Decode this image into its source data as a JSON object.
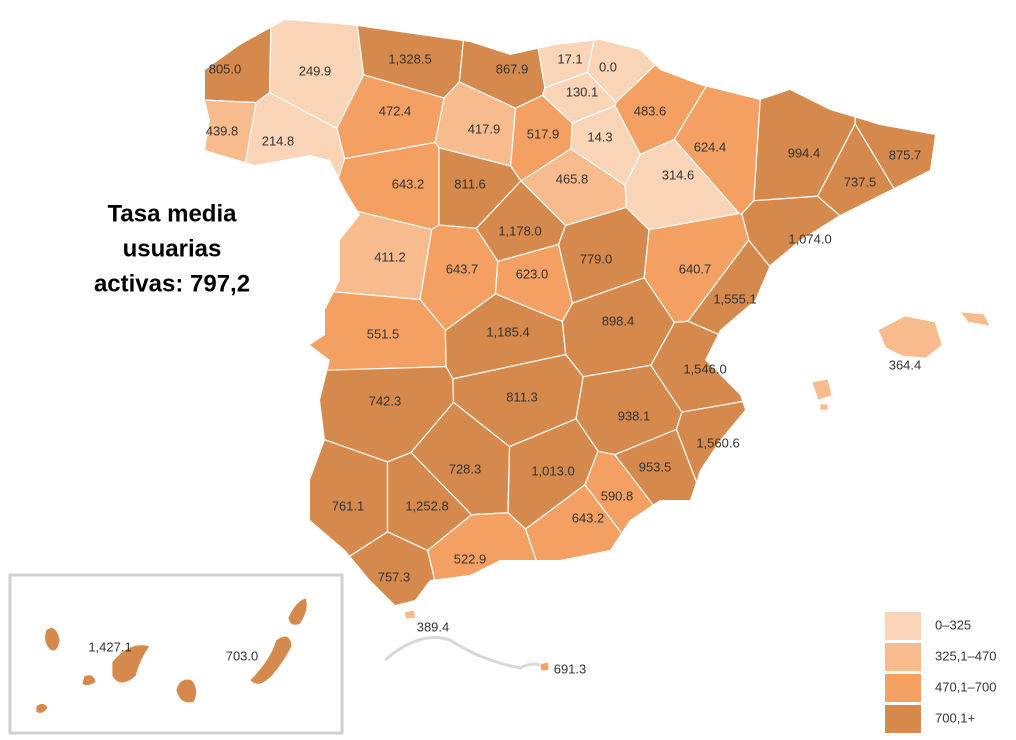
{
  "title_lines": [
    "Tasa media",
    "usuarias",
    "activas: 797,2"
  ],
  "regions": [
    {
      "label": "805.0",
      "class": 3
    },
    {
      "label": "249.9",
      "class": 0
    },
    {
      "label": "1,328.5",
      "class": 3
    },
    {
      "label": "867.9",
      "class": 3
    },
    {
      "label": "17.1",
      "class": 0
    },
    {
      "label": "0.0",
      "class": 0
    },
    {
      "label": "130.1",
      "class": 0
    },
    {
      "label": "483.6",
      "class": 2
    },
    {
      "label": "472.4",
      "class": 2
    },
    {
      "label": "417.9",
      "class": 1
    },
    {
      "label": "517.9",
      "class": 2
    },
    {
      "label": "14.3",
      "class": 0
    },
    {
      "label": "439.8",
      "class": 1
    },
    {
      "label": "214.8",
      "class": 0
    },
    {
      "label": "624.4",
      "class": 2
    },
    {
      "label": "994.4",
      "class": 3
    },
    {
      "label": "875.7",
      "class": 3
    },
    {
      "label": "737.5",
      "class": 3
    },
    {
      "label": "643.2",
      "class": 2
    },
    {
      "label": "811.6",
      "class": 3
    },
    {
      "label": "465.8",
      "class": 1
    },
    {
      "label": "314.6",
      "class": 0
    },
    {
      "label": "1,178.0",
      "class": 3
    },
    {
      "label": "1,074.0",
      "class": 3
    },
    {
      "label": "411.2",
      "class": 1
    },
    {
      "label": "643.7",
      "class": 2
    },
    {
      "label": "623.0",
      "class": 2
    },
    {
      "label": "779.0",
      "class": 3
    },
    {
      "label": "640.7",
      "class": 2
    },
    {
      "label": "1,555.1",
      "class": 3
    },
    {
      "label": "551.5",
      "class": 2
    },
    {
      "label": "1,185.4",
      "class": 3
    },
    {
      "label": "898.4",
      "class": 3
    },
    {
      "label": "1,546.0",
      "class": 3
    },
    {
      "label": "742.3",
      "class": 3
    },
    {
      "label": "811.3",
      "class": 3
    },
    {
      "label": "938.1",
      "class": 3
    },
    {
      "label": "1,560.6",
      "class": 3
    },
    {
      "label": "728.3",
      "class": 3
    },
    {
      "label": "1,013.0",
      "class": 3
    },
    {
      "label": "953.5",
      "class": 3
    },
    {
      "label": "761.1",
      "class": 3
    },
    {
      "label": "1,252.8",
      "class": 3
    },
    {
      "label": "643.2",
      "class": 2
    },
    {
      "label": "590.8",
      "class": 2
    },
    {
      "label": "522.9",
      "class": 2
    },
    {
      "label": "757.3",
      "class": 3
    },
    {
      "label": "364.4",
      "class": 1
    },
    {
      "label": "389.4",
      "class": 1
    },
    {
      "label": "691.3",
      "class": 2
    },
    {
      "label": "1,427.1",
      "class": 3
    },
    {
      "label": "703.0",
      "class": 3
    }
  ],
  "legend": [
    {
      "label": "0–325",
      "color": "#f9d4b6"
    },
    {
      "label": "325,1–470",
      "color": "#f7bb8e"
    },
    {
      "label": "470,1–700",
      "color": "#f3a062"
    },
    {
      "label": "700,1+",
      "color": "#d6894c"
    }
  ]
}
